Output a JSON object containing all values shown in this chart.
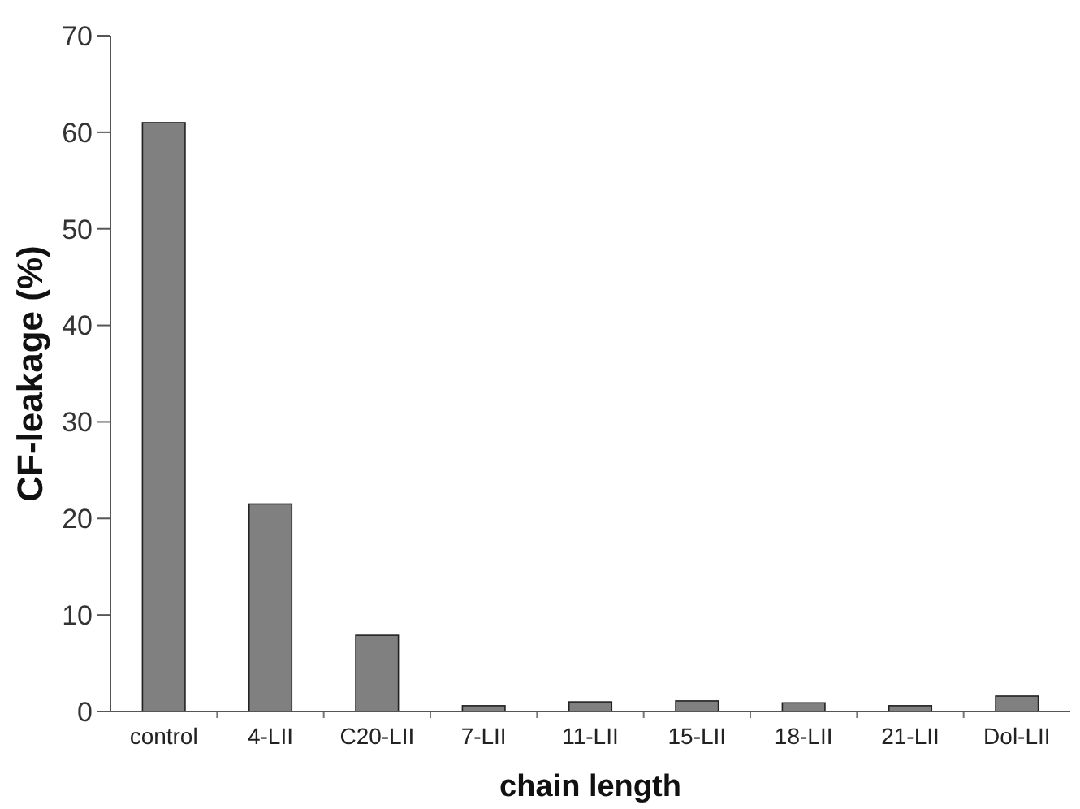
{
  "chart_data": {
    "type": "bar",
    "xlabel": "chain length",
    "ylabel": "CF-leakage (%)",
    "categories": [
      "control",
      "4-LII",
      "C20-LII",
      "7-LII",
      "11-LII",
      "15-LII",
      "18-LII",
      "21-LII",
      "Dol-LII"
    ],
    "values": [
      61,
      21.5,
      7.9,
      0.6,
      1.0,
      1.1,
      0.9,
      0.6,
      1.6
    ],
    "color": "#808080",
    "ylim": [
      0,
      70
    ],
    "yticks": [
      0,
      10,
      20,
      30,
      40,
      50,
      60,
      70
    ],
    "grid": false
  }
}
